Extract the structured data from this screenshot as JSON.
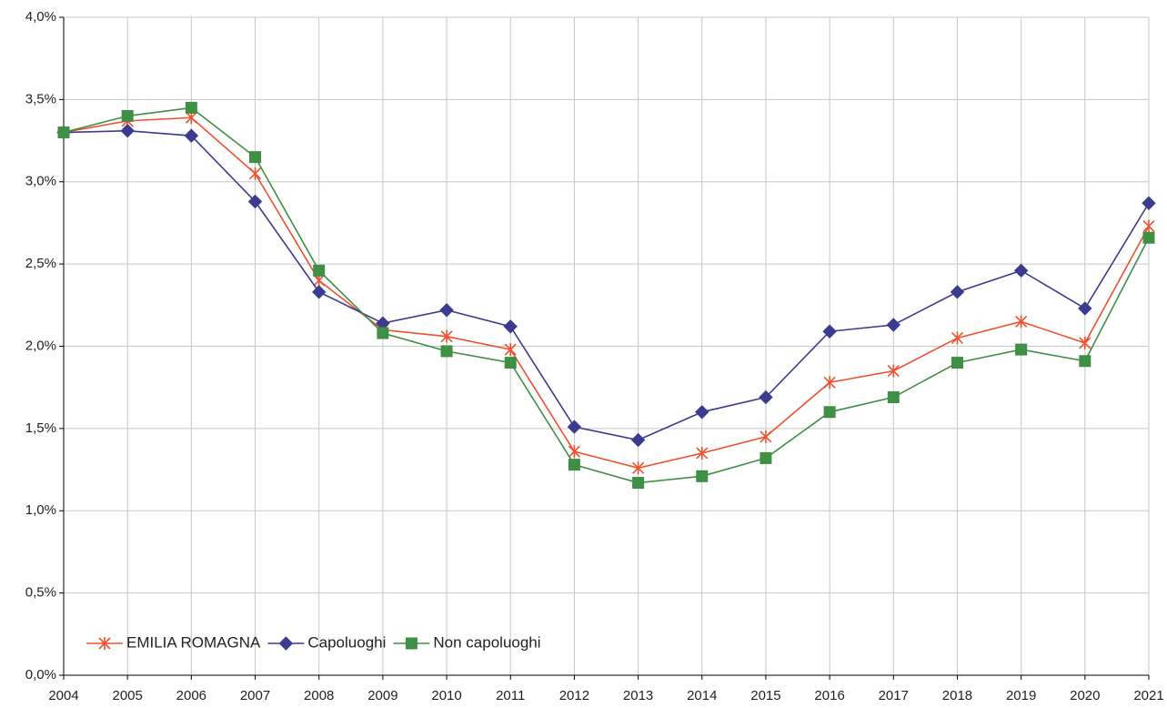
{
  "chart_data": {
    "type": "line",
    "categories": [
      "2004",
      "2005",
      "2006",
      "2007",
      "2008",
      "2009",
      "2010",
      "2011",
      "2012",
      "2013",
      "2014",
      "2015",
      "2016",
      "2017",
      "2018",
      "2019",
      "2020",
      "2021"
    ],
    "series": [
      {
        "name": "EMILIA ROMAGNA",
        "color": "#f0502f",
        "marker": "asterisk",
        "values": [
          3.3,
          3.37,
          3.39,
          3.05,
          2.4,
          2.1,
          2.06,
          1.98,
          1.36,
          1.26,
          1.35,
          1.45,
          1.78,
          1.85,
          2.05,
          2.15,
          2.02,
          2.73
        ]
      },
      {
        "name": "Capoluoghi",
        "color": "#3b3b8f",
        "marker": "diamond",
        "values": [
          3.3,
          3.31,
          3.28,
          2.88,
          2.33,
          2.14,
          2.22,
          2.12,
          1.51,
          1.43,
          1.6,
          1.69,
          2.09,
          2.13,
          2.33,
          2.46,
          2.23,
          2.87
        ]
      },
      {
        "name": "Non capoluoghi",
        "color": "#3f8f45",
        "marker": "square",
        "values": [
          3.3,
          3.4,
          3.45,
          3.15,
          2.46,
          2.08,
          1.97,
          1.9,
          1.28,
          1.17,
          1.21,
          1.32,
          1.6,
          1.69,
          1.9,
          1.98,
          1.91,
          2.66
        ]
      }
    ],
    "ylim": [
      0,
      4
    ],
    "yticks": [
      {
        "value": 0,
        "label": "0,0%"
      },
      {
        "value": 0.5,
        "label": "0,5%"
      },
      {
        "value": 1,
        "label": "1,0%"
      },
      {
        "value": 1.5,
        "label": "1,5%"
      },
      {
        "value": 2,
        "label": "2,0%"
      },
      {
        "value": 2.5,
        "label": "2,5%"
      },
      {
        "value": 3,
        "label": "3,0%"
      },
      {
        "value": 3.5,
        "label": "3,5%"
      },
      {
        "value": 4,
        "label": "4,0%"
      }
    ],
    "grid": true,
    "legend": "lower left"
  }
}
